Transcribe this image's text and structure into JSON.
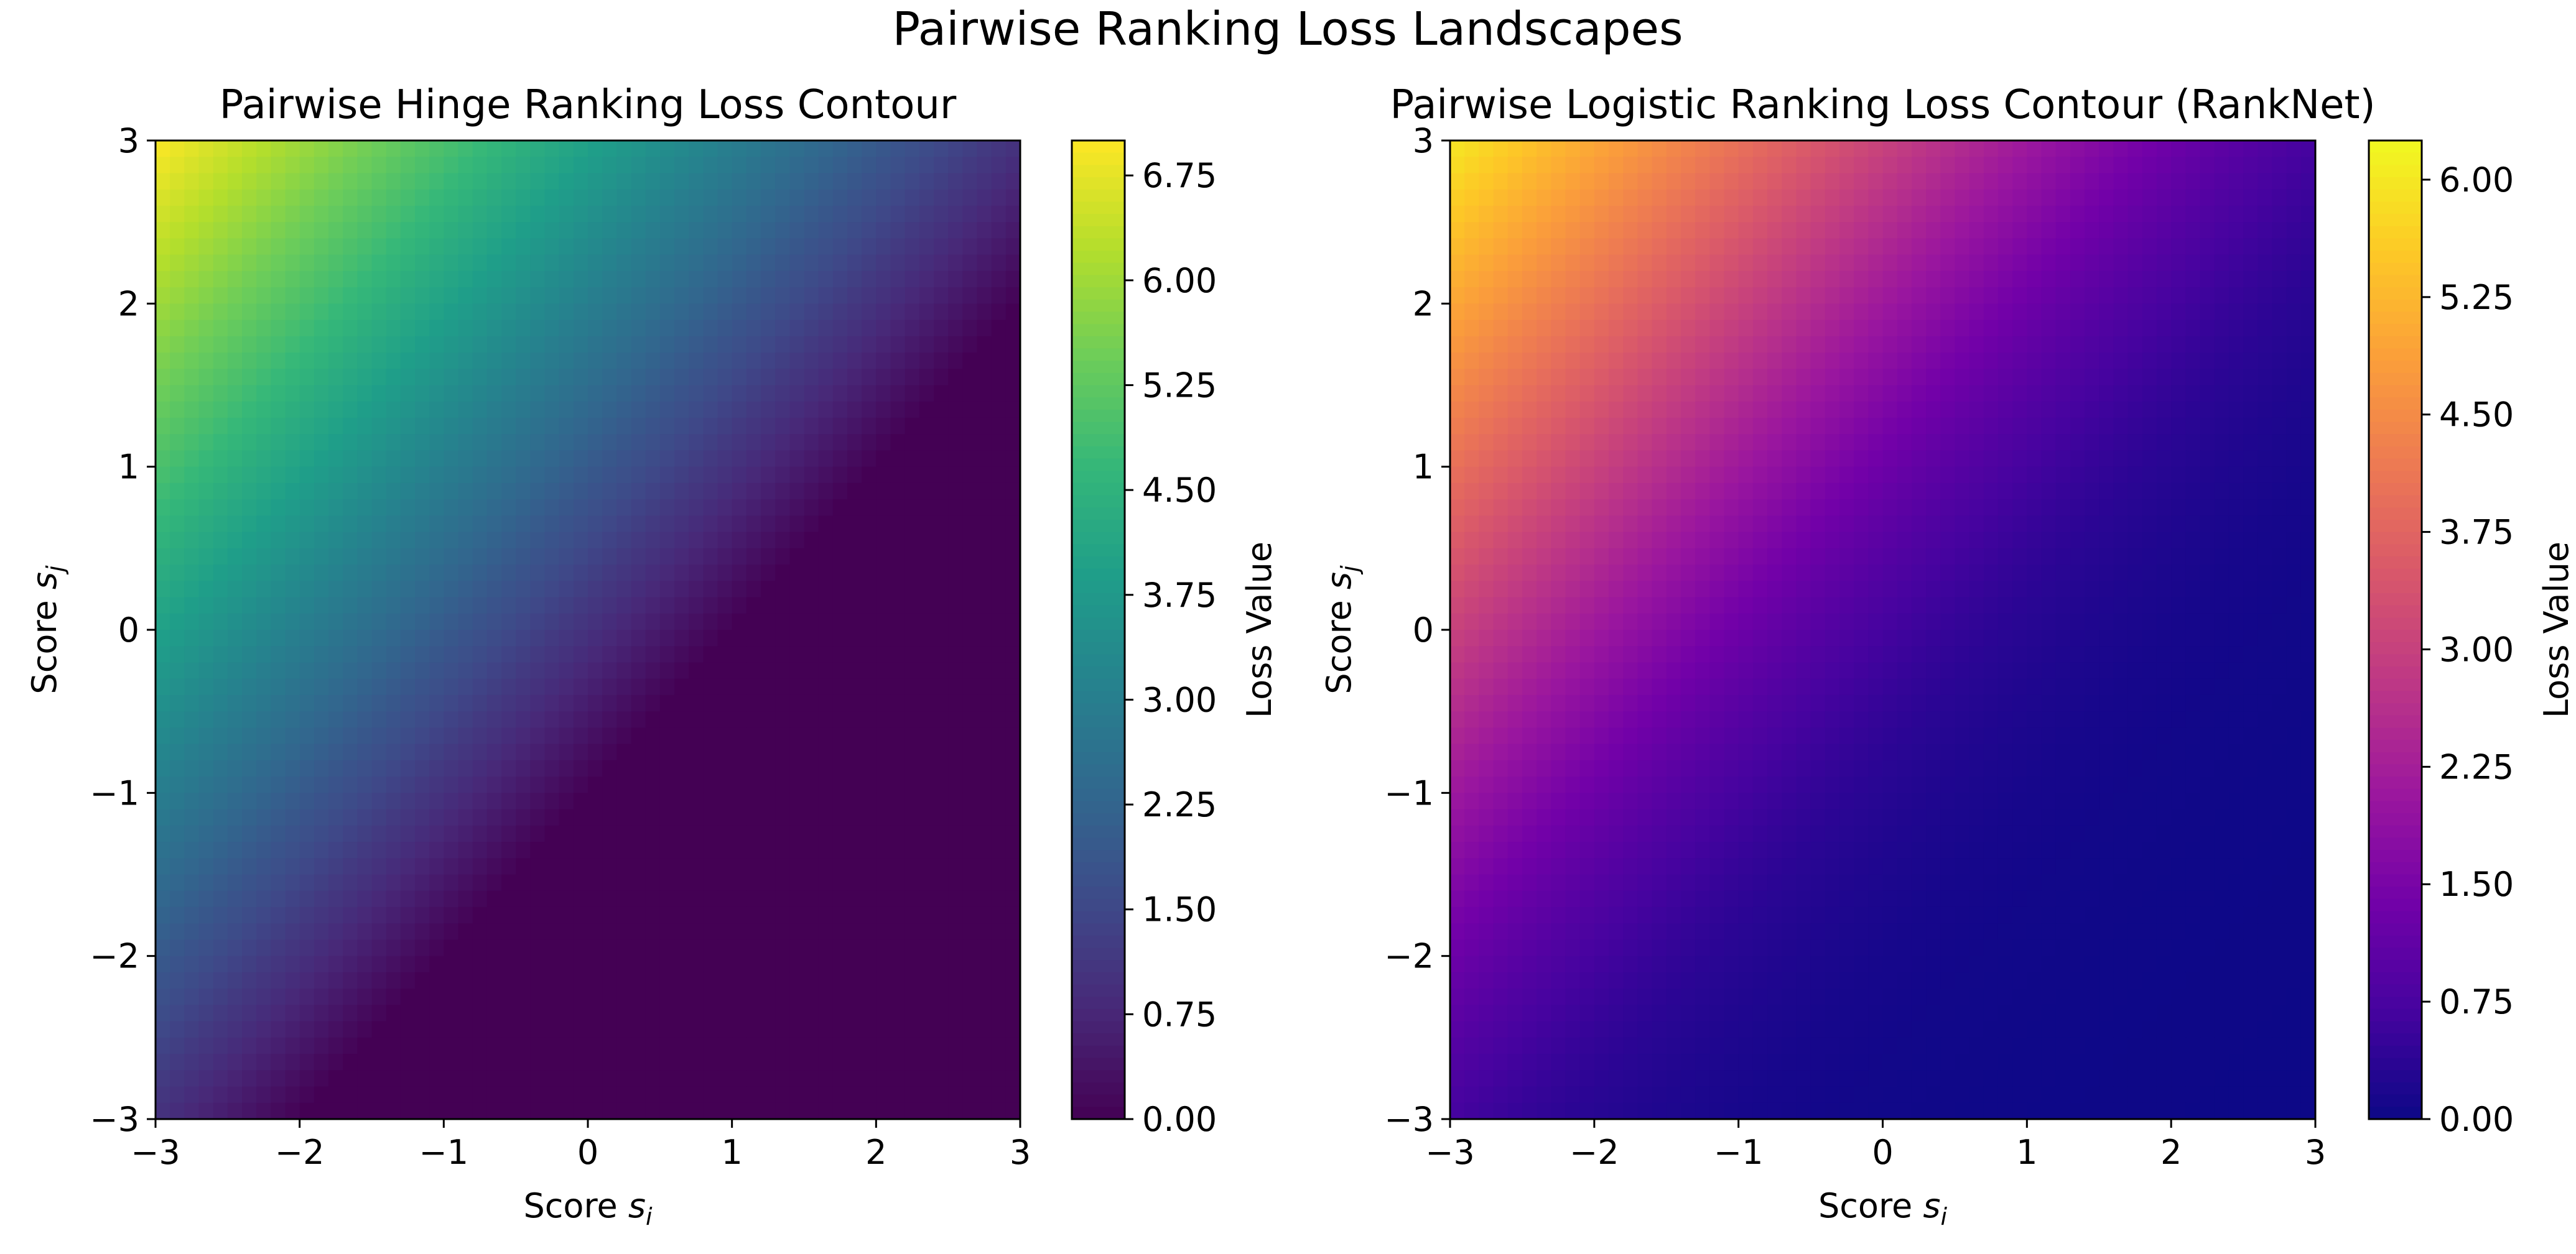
{
  "suptitle": "Pairwise Ranking Loss Landscapes",
  "chart_data": [
    {
      "type": "contour",
      "loss": "hinge",
      "margin": 1,
      "title": "Pairwise Hinge Ranking Loss Contour",
      "xlabel": "Score s_i",
      "ylabel": "Score s_j",
      "xlim": [
        -3,
        3
      ],
      "ylim": [
        -3,
        3
      ],
      "xticks": [
        -3,
        -2,
        -1,
        0,
        1,
        2,
        3
      ],
      "yticks": [
        -3,
        -2,
        -1,
        0,
        1,
        2,
        3
      ],
      "colormap": "viridis",
      "colorbar": {
        "label": "Loss Value",
        "range": [
          0,
          7.0
        ],
        "ticks": [
          "0.00",
          "0.75",
          "1.50",
          "2.25",
          "3.00",
          "3.75",
          "4.50",
          "5.25",
          "6.00",
          "6.75"
        ]
      },
      "grid": false
    },
    {
      "type": "contour",
      "loss": "logistic",
      "title": "Pairwise Logistic Ranking Loss Contour (RankNet)",
      "xlabel": "Score s_i",
      "ylabel": "Score s_j",
      "xlim": [
        -3,
        3
      ],
      "ylim": [
        -3,
        3
      ],
      "xticks": [
        -3,
        -2,
        -1,
        0,
        1,
        2,
        3
      ],
      "yticks": [
        -3,
        -2,
        -1,
        0,
        1,
        2,
        3
      ],
      "colormap": "plasma",
      "colorbar": {
        "label": "Loss Value",
        "range": [
          0,
          6.25
        ],
        "ticks": [
          "0.00",
          "0.75",
          "1.50",
          "2.25",
          "3.00",
          "3.75",
          "4.50",
          "5.25",
          "6.00"
        ]
      },
      "grid": false
    }
  ]
}
